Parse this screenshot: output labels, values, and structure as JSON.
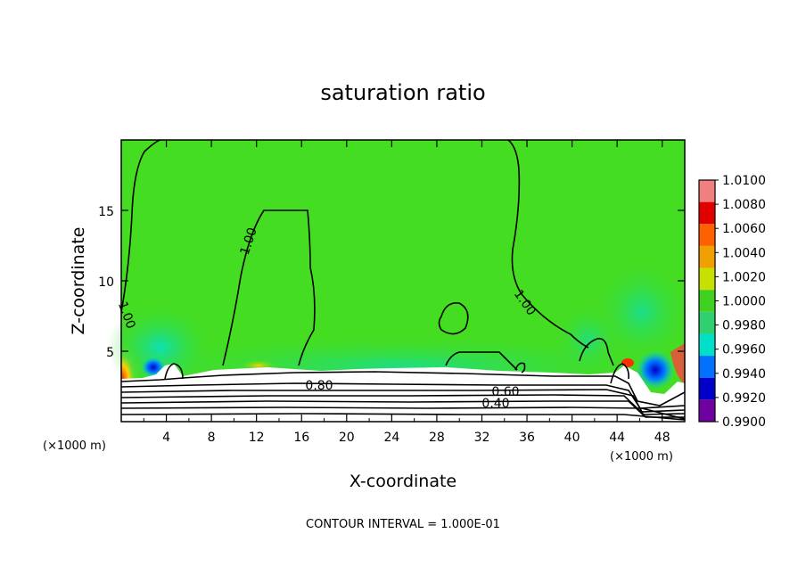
{
  "chart_data": {
    "type": "heatmap",
    "title": "saturation ratio",
    "xlabel": "X-coordinate",
    "ylabel": "Z-coordinate",
    "x_unit_left": "(×1000 m)",
    "x_unit_right": "(×1000 m)",
    "xlim": [
      0,
      50
    ],
    "ylim": [
      0,
      20
    ],
    "x_ticks": [
      "4",
      "8",
      "12",
      "16",
      "20",
      "24",
      "28",
      "32",
      "36",
      "40",
      "44",
      "48"
    ],
    "y_ticks": [
      "5",
      "10",
      "15"
    ],
    "contour_labels": [
      "1.00",
      "1.00",
      "1.00",
      "0.80",
      "0.60",
      "0.40"
    ],
    "footer": "CONTOUR INTERVAL = 1.000E-01",
    "colorbar": {
      "labels": [
        "1.0100",
        "1.0080",
        "1.0060",
        "1.0040",
        "1.0020",
        "1.0000",
        "0.9980",
        "0.9960",
        "0.9940",
        "0.9920",
        "0.9900"
      ],
      "colors": [
        "#f08080",
        "#e00000",
        "#ff6000",
        "#f0a000",
        "#c8e000",
        "#40d020",
        "#30d070",
        "#00e0c8",
        "#0070ff",
        "#0000c8",
        "#7000a0"
      ]
    },
    "background_color": "#44dd22"
  }
}
